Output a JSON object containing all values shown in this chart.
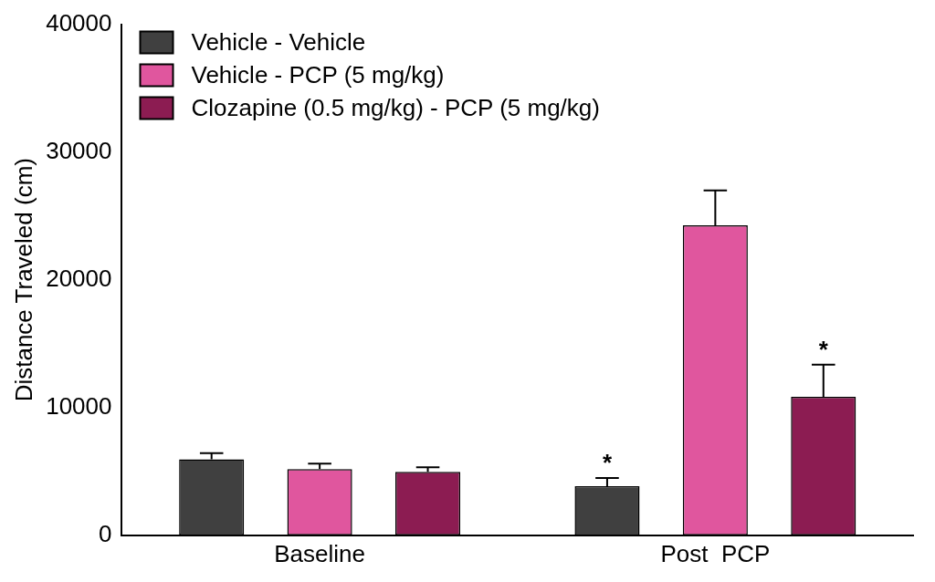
{
  "chart_data": {
    "type": "bar",
    "ylabel": "Distance Traveled (cm)",
    "categories": [
      "Baseline",
      "Post  PCP"
    ],
    "series": [
      {
        "name": "Vehicle - Vehicle",
        "color": "#404040",
        "values": [
          5950,
          3850
        ],
        "errors": [
          [
            5950,
            6430
          ],
          [
            3850,
            4480
          ]
        ]
      },
      {
        "name": "Vehicle - PCP (5 mg/kg)",
        "color": "#e0569e",
        "values": [
          5180,
          24270
        ],
        "errors": [
          [
            5180,
            5610
          ],
          [
            24270,
            26990
          ]
        ]
      },
      {
        "name": "Clozapine (0.5 mg/kg) - PCP (5 mg/kg)",
        "color": "#8c1c52",
        "values": [
          4970,
          10840
        ],
        "errors": [
          [
            4970,
            5320
          ],
          [
            10840,
            13360
          ]
        ]
      }
    ],
    "ylim": [
      0,
      40000
    ],
    "yticks": [
      0,
      10000,
      20000,
      30000,
      40000
    ],
    "grid": false,
    "legend": "top left",
    "annotations": [
      "*",
      "*"
    ]
  }
}
